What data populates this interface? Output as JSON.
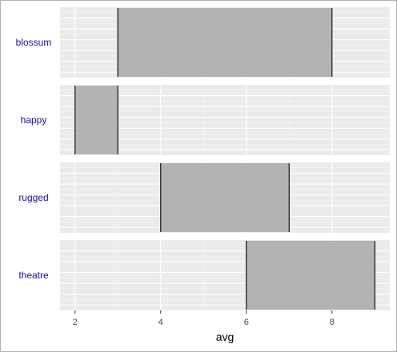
{
  "chart_data": {
    "type": "bar",
    "orientation": "horizontal-range",
    "facets": [
      "blossum",
      "happy",
      "rugged",
      "theatre"
    ],
    "ranges": [
      {
        "facet": "blossum",
        "start": 3,
        "end": 8
      },
      {
        "facet": "happy",
        "start": 2,
        "end": 3
      },
      {
        "facet": "rugged",
        "start": 4,
        "end": 7
      },
      {
        "facet": "theatre",
        "start": 6,
        "end": 9
      }
    ],
    "xlabel": "avg",
    "xlim": [
      1.65,
      9.35
    ],
    "x_ticks": [
      2,
      4,
      6,
      8
    ],
    "grid": true,
    "colors": {
      "bar": "#b3b3b3",
      "panel": "#ebebeb",
      "label": "#1a0dab"
    }
  }
}
